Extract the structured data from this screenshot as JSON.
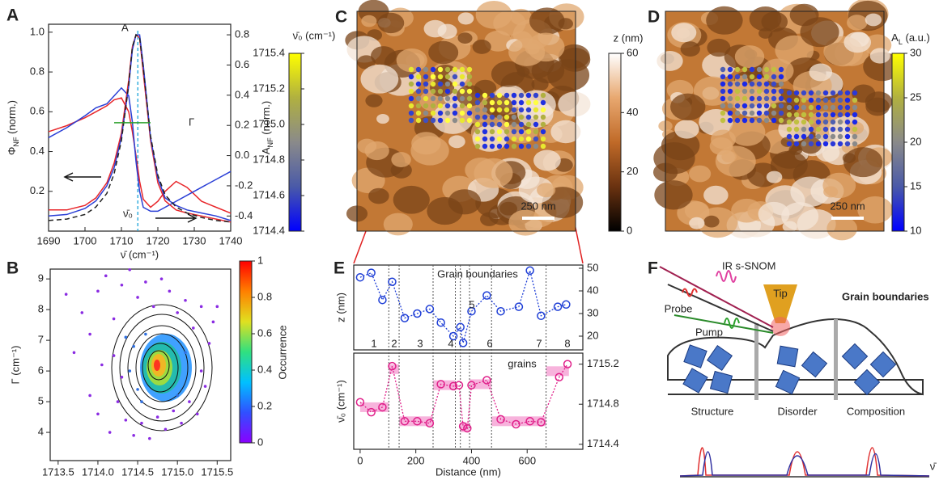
{
  "chart_data": [
    {
      "panel": "A",
      "type": "line",
      "x_label": "ν̄ (cm⁻¹)",
      "y_label": [
        "Φ",
        "NF",
        " (norm.)"
      ],
      "y2_label": [
        "A",
        "NF",
        " (norm.)"
      ],
      "x": [
        1690,
        1695,
        1700,
        1703,
        1706,
        1708,
        1710,
        1712,
        1713,
        1714,
        1715,
        1716,
        1718,
        1720,
        1722,
        1725,
        1728,
        1732,
        1736,
        1740
      ],
      "xlim": [
        1690,
        1740
      ],
      "xticks": [
        1690,
        1700,
        1710,
        1720,
        1730,
        1740
      ],
      "ylim": [
        0,
        1.04
      ],
      "yticks": [
        0.2,
        0.4,
        0.6,
        0.8,
        {
          "value": 1,
          "label": "1.0"
        }
      ],
      "y2lim": [
        -0.5,
        0.87
      ],
      "y2ticks": [
        -0.4,
        -0.2,
        {
          "value": 0,
          "label": "0.0"
        },
        0.2,
        0.4,
        0.6,
        0.8
      ],
      "series": [
        {
          "color": "#e8262a",
          "values": [
            0.5,
            0.53,
            0.57,
            0.6,
            0.63,
            0.66,
            0.67,
            0.6,
            0.5,
            0.38,
            0.25,
            0.16,
            0.12,
            0.15,
            0.2,
            0.25,
            0.22,
            0.15,
            0.12,
            0.09
          ]
        },
        {
          "color": "#2a3fd6",
          "values": [
            0.47,
            0.52,
            0.58,
            0.62,
            0.64,
            0.68,
            0.72,
            0.68,
            0.55,
            0.35,
            0.2,
            0.12,
            0.1,
            0.1,
            0.12,
            0.15,
            0.18,
            0.22,
            0.26,
            0.3
          ]
        },
        {
          "color": "#e8262a",
          "axis": "y2",
          "values": [
            -0.36,
            -0.36,
            -0.33,
            -0.28,
            -0.18,
            -0.05,
            0.15,
            0.5,
            0.72,
            0.8,
            0.78,
            0.55,
            0.1,
            -0.18,
            -0.3,
            -0.36,
            -0.38,
            -0.4,
            -0.42,
            -0.44
          ]
        },
        {
          "color": "#2a3fd6",
          "axis": "y2",
          "values": [
            -0.4,
            -0.39,
            -0.35,
            -0.3,
            -0.2,
            -0.08,
            0.12,
            0.46,
            0.7,
            0.8,
            0.8,
            0.6,
            0.12,
            -0.15,
            -0.28,
            -0.33,
            -0.36,
            -0.38,
            -0.4,
            -0.43
          ]
        },
        {
          "color": "#222222",
          "axis": "y2",
          "dashed": true,
          "values": [
            -0.43,
            -0.42,
            -0.39,
            -0.34,
            -0.25,
            -0.12,
            0.1,
            0.47,
            0.72,
            0.8,
            0.78,
            0.58,
            0.13,
            -0.13,
            -0.26,
            -0.34,
            -0.38,
            -0.41,
            -0.43,
            -0.44
          ]
        }
      ],
      "annotations": [
        {
          "text": "A",
          "color": "#e8262a"
        },
        {
          "text": "Γ",
          "color": "#2ca02c"
        },
        {
          "text": "ν̄₀",
          "color": "#1aa3d9"
        }
      ],
      "gamma_line": {
        "x": [
          1708,
          1718
        ],
        "y": 0.545,
        "color": "#2ca02c"
      },
      "center_line": {
        "x": 1714.5,
        "color": "#1aa3d9"
      }
    },
    {
      "panel": "B",
      "type": "scatter",
      "x_label": "ν̄₀ (cm⁻¹)",
      "y_label": "Γ (cm⁻¹)",
      "xlim": [
        1713.4,
        1715.67
      ],
      "xticks": [
        1713.5,
        {
          "value": 1714,
          "label": "1714.0"
        },
        1714.5,
        {
          "value": 1715,
          "label": "1715.0"
        },
        1715.5
      ],
      "ylim": [
        3.08,
        9.32
      ],
      "yticks": [
        4,
        5,
        6,
        7,
        8,
        9
      ],
      "series": [
        {
          "color": "#8a2be2",
          "x": [
            1713.6,
            1713.7,
            1713.8,
            1713.9,
            1713.9,
            1714.0,
            1714.0,
            1714.05,
            1714.1,
            1714.15,
            1714.2,
            1714.25,
            1714.3,
            1714.35,
            1714.4,
            1714.45,
            1714.5,
            1714.55,
            1714.6,
            1714.65,
            1714.7,
            1714.75,
            1714.8,
            1714.85,
            1714.9,
            1714.95,
            1715.0,
            1715.05,
            1715.1,
            1715.15,
            1715.2,
            1715.25,
            1715.3,
            1715.35,
            1715.4,
            1715.45,
            1715.5,
            1715.3,
            1714.2,
            1714.3
          ],
          "values": [
            8.5,
            6.6,
            7.9,
            5.2,
            7.2,
            4.6,
            8.6,
            6.2,
            9.1,
            4.0,
            7.7,
            5.0,
            8.8,
            4.4,
            9.3,
            3.9,
            8.4,
            4.3,
            8.9,
            3.8,
            8.1,
            4.5,
            9.0,
            4.1,
            8.6,
            4.7,
            7.9,
            4.3,
            8.3,
            5.0,
            7.4,
            4.6,
            8.1,
            5.5,
            6.9,
            7.6,
            8.1,
            6.0,
            6.5,
            5.8
          ]
        },
        {
          "color": "#2f6fe0",
          "x": [
            1714.4,
            1714.5,
            1714.45,
            1714.6,
            1714.55,
            1715.0,
            1715.1,
            1714.35
          ],
          "values": [
            6.0,
            5.4,
            6.8,
            7.2,
            5.0,
            5.2,
            6.6,
            7.1
          ]
        }
      ],
      "colorbar": {
        "label": "Occurrence",
        "lim": [
          0,
          1
        ],
        "ticks": [
          0,
          0.2,
          0.4,
          0.6,
          0.8,
          1
        ]
      }
    },
    {
      "panel": "C",
      "type": "image",
      "scale_bar": "250 nm",
      "colorbar": {
        "label": "ν̄₀ (cm⁻¹)",
        "lim": [
          1714.4,
          1715.4
        ],
        "ticks": [
          1714.4,
          1714.6,
          1714.8,
          {
            "value": 1715,
            "label": "1715.0"
          },
          1715.2,
          1715.4
        ]
      },
      "colorbar2": {
        "label": "z (nm)",
        "lim": [
          0,
          60
        ],
        "ticks": [
          0,
          20,
          40,
          60
        ]
      }
    },
    {
      "panel": "D",
      "type": "image",
      "scale_bar": "250 nm",
      "colorbar": {
        "label": [
          "A",
          "L",
          " (a.u.)"
        ],
        "lim": [
          10,
          30
        ],
        "ticks": [
          10,
          15,
          20,
          25,
          30
        ]
      }
    },
    {
      "panel": "E",
      "type": "line",
      "y_label": "z (nm)",
      "annotation": "Grain boundaries",
      "x": [
        0,
        40,
        80,
        115,
        160,
        205,
        250,
        290,
        335,
        360,
        370,
        400,
        455,
        505,
        570,
        610,
        650,
        710,
        740
      ],
      "values": [
        46,
        48,
        36,
        44,
        28,
        30,
        32,
        26,
        20,
        24,
        17,
        31,
        38,
        31,
        33,
        49,
        29,
        33,
        34
      ],
      "color": "#1f3fd6",
      "xlim": [
        -23,
        800
      ],
      "ylim": [
        13.93,
        51.43
      ],
      "yticks": [
        20,
        30,
        40,
        50
      ],
      "boundaries": [
        103,
        140,
        262,
        342,
        360,
        393,
        472,
        668
      ],
      "grain_labels": [
        "1",
        "2",
        "3",
        "4",
        "5",
        "6",
        "7",
        "8"
      ]
    },
    {
      "panel": "E",
      "type": "line",
      "x_label": "Distance (nm)",
      "y_label": "ν̄₀ (cm⁻¹)",
      "annotation": "grains",
      "x": [
        0,
        40,
        80,
        115,
        160,
        205,
        250,
        290,
        335,
        355,
        370,
        385,
        400,
        455,
        505,
        560,
        610,
        650,
        715,
        745
      ],
      "values": [
        1714.82,
        1714.72,
        1714.77,
        1715.18,
        1714.63,
        1714.63,
        1714.61,
        1715.0,
        1714.98,
        1714.99,
        1714.58,
        1714.56,
        1714.99,
        1715.04,
        1714.65,
        1714.6,
        1714.63,
        1714.62,
        1715.07,
        1715.2
      ],
      "color": "#e0208a",
      "band_color": "#f7b3dc",
      "bands": [
        {
          "x": [
            0,
            103
          ],
          "y": 1714.77
        },
        {
          "x": [
            103,
            140
          ],
          "y": 1715.15
        },
        {
          "x": [
            140,
            262
          ],
          "y": 1714.63
        },
        {
          "x": [
            262,
            342
          ],
          "y": 1714.99
        },
        {
          "x": [
            360,
            393
          ],
          "y": 1714.57
        },
        {
          "x": [
            393,
            472
          ],
          "y": 1715.0
        },
        {
          "x": [
            472,
            668
          ],
          "y": 1714.63
        },
        {
          "x": [
            668,
            750
          ],
          "y": 1715.13
        }
      ],
      "xlim": [
        -23,
        800
      ],
      "xticks": [
        0,
        200,
        400,
        600
      ],
      "ylim": [
        1714.35,
        1715.31
      ],
      "yticks": [
        1714.4,
        1714.8,
        1715.2
      ]
    }
  ],
  "diagram": {
    "panel": "F",
    "labels": {
      "ir": "IR s-SNOM",
      "probe": "Probe",
      "pump": "Pump",
      "tip": "Tip",
      "boundaries": "Grain boundaries",
      "structure": "Structure",
      "disorder": "Disorder",
      "composition": "Composition",
      "axis": "ν̄"
    }
  }
}
